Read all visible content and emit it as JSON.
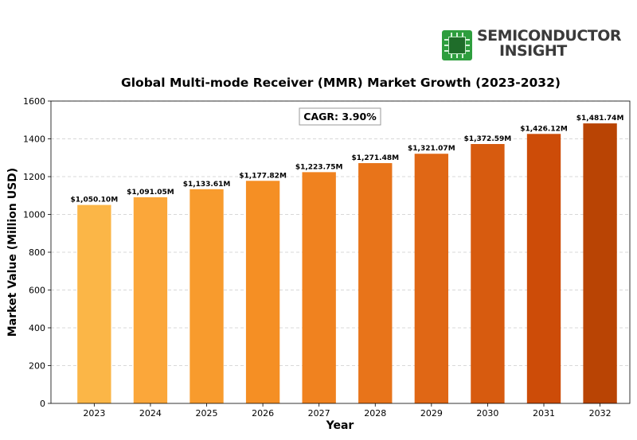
{
  "logo": {
    "line1": "SEMICONDUCTOR",
    "line2": "INSIGHT",
    "icon": "chip-icon",
    "color": "#2e9e3e"
  },
  "chart_data": {
    "type": "bar",
    "title": "Global Multi-mode Receiver (MMR) Market Growth (2023-2032)",
    "xlabel": "Year",
    "ylabel": "Market Value (Million USD)",
    "ylim": [
      0,
      1600
    ],
    "yticks": [
      0,
      200,
      400,
      600,
      800,
      1000,
      1200,
      1400,
      1600
    ],
    "grid": true,
    "categories": [
      "2023",
      "2024",
      "2025",
      "2026",
      "2027",
      "2028",
      "2029",
      "2030",
      "2031",
      "2032"
    ],
    "values": [
      1050.1,
      1091.05,
      1133.61,
      1177.82,
      1223.75,
      1271.48,
      1321.07,
      1372.59,
      1426.12,
      1481.74
    ],
    "data_labels": [
      "$1,050.10M",
      "$1,091.05M",
      "$1,133.61M",
      "$1,177.82M",
      "$1,223.75M",
      "$1,271.48M",
      "$1,321.07M",
      "$1,372.59M",
      "$1,426.12M",
      "$1,481.74M"
    ],
    "colors": [
      "#fbb647",
      "#fba73a",
      "#f89b2d",
      "#f58f24",
      "#f0821f",
      "#e8741a",
      "#e06715",
      "#d75b0f",
      "#cd4c08",
      "#b94404"
    ],
    "annotation": "CAGR: 3.90%"
  }
}
